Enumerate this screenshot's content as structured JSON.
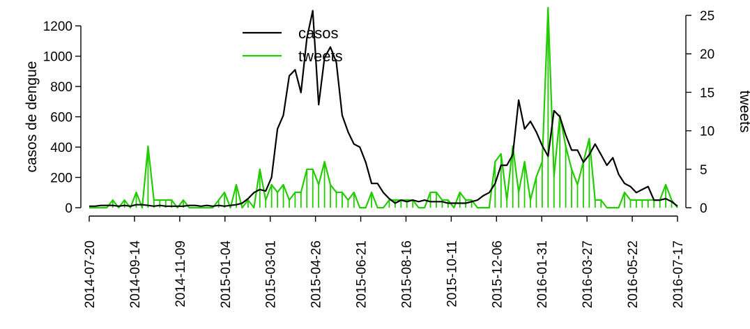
{
  "chart_data": {
    "type": "line",
    "ylabel_left": "casos de dengue",
    "ylabel_right": "tweets",
    "ylim_left": [
      0,
      1320
    ],
    "ylim_right": [
      0,
      26
    ],
    "yticks_left": [
      0,
      200,
      400,
      600,
      800,
      1000,
      1200
    ],
    "yticks_right": [
      0,
      5,
      10,
      15,
      20,
      25
    ],
    "x_tick_labels": [
      "2014-07-20",
      "2014-09-14",
      "2014-11-09",
      "2015-01-04",
      "2015-03-01",
      "2015-04-26",
      "2015-06-21",
      "2015-08-16",
      "2015-10-11",
      "2015-12-06",
      "2016-01-31",
      "2016-03-27",
      "2016-05-22",
      "2016-07-17"
    ],
    "x_start": "2014-07-20",
    "x_step": "weekly",
    "legend_position": "top-center",
    "colors": {
      "casos": "#000000",
      "tweets": "#22cc00"
    },
    "series": [
      {
        "name": "casos",
        "axis": "left",
        "style": "line",
        "values": [
          10,
          10,
          15,
          15,
          15,
          10,
          15,
          10,
          20,
          20,
          15,
          10,
          15,
          10,
          10,
          10,
          10,
          15,
          15,
          10,
          15,
          10,
          15,
          10,
          15,
          20,
          30,
          60,
          100,
          120,
          110,
          200,
          520,
          610,
          870,
          910,
          760,
          1120,
          1300,
          680,
          990,
          1060,
          960,
          610,
          500,
          420,
          400,
          300,
          160,
          160,
          100,
          60,
          30,
          50,
          40,
          50,
          40,
          50,
          40,
          40,
          40,
          30,
          30,
          30,
          30,
          40,
          50,
          80,
          100,
          160,
          280,
          280,
          350,
          710,
          520,
          570,
          500,
          410,
          340,
          640,
          600,
          480,
          380,
          380,
          300,
          350,
          420,
          350,
          280,
          330,
          220,
          160,
          140,
          100,
          120,
          140,
          50,
          50,
          60,
          40,
          10
        ]
      },
      {
        "name": "tweets",
        "axis": "right",
        "style": "line-with-droplines",
        "values": [
          0,
          0,
          0,
          0,
          1,
          0,
          1,
          0,
          2,
          0,
          8,
          1,
          1,
          1,
          1,
          0,
          1,
          0,
          0,
          0,
          0,
          0,
          1,
          2,
          0,
          3,
          0,
          1,
          0,
          5,
          1,
          3,
          2,
          3,
          1,
          2,
          2,
          5,
          5,
          3,
          6,
          3,
          2,
          2,
          1,
          2,
          0,
          0,
          2,
          0,
          0,
          1,
          1,
          1,
          1,
          1,
          0,
          0,
          2,
          2,
          1,
          1,
          0,
          2,
          1,
          1,
          0,
          0,
          0,
          6,
          7,
          1,
          8,
          2,
          6,
          1,
          4,
          6,
          26,
          4,
          12,
          8,
          5,
          3,
          6,
          9,
          1,
          1,
          0,
          0,
          0,
          2,
          1,
          1,
          1,
          1,
          1,
          1,
          3,
          1,
          0
        ]
      }
    ]
  }
}
